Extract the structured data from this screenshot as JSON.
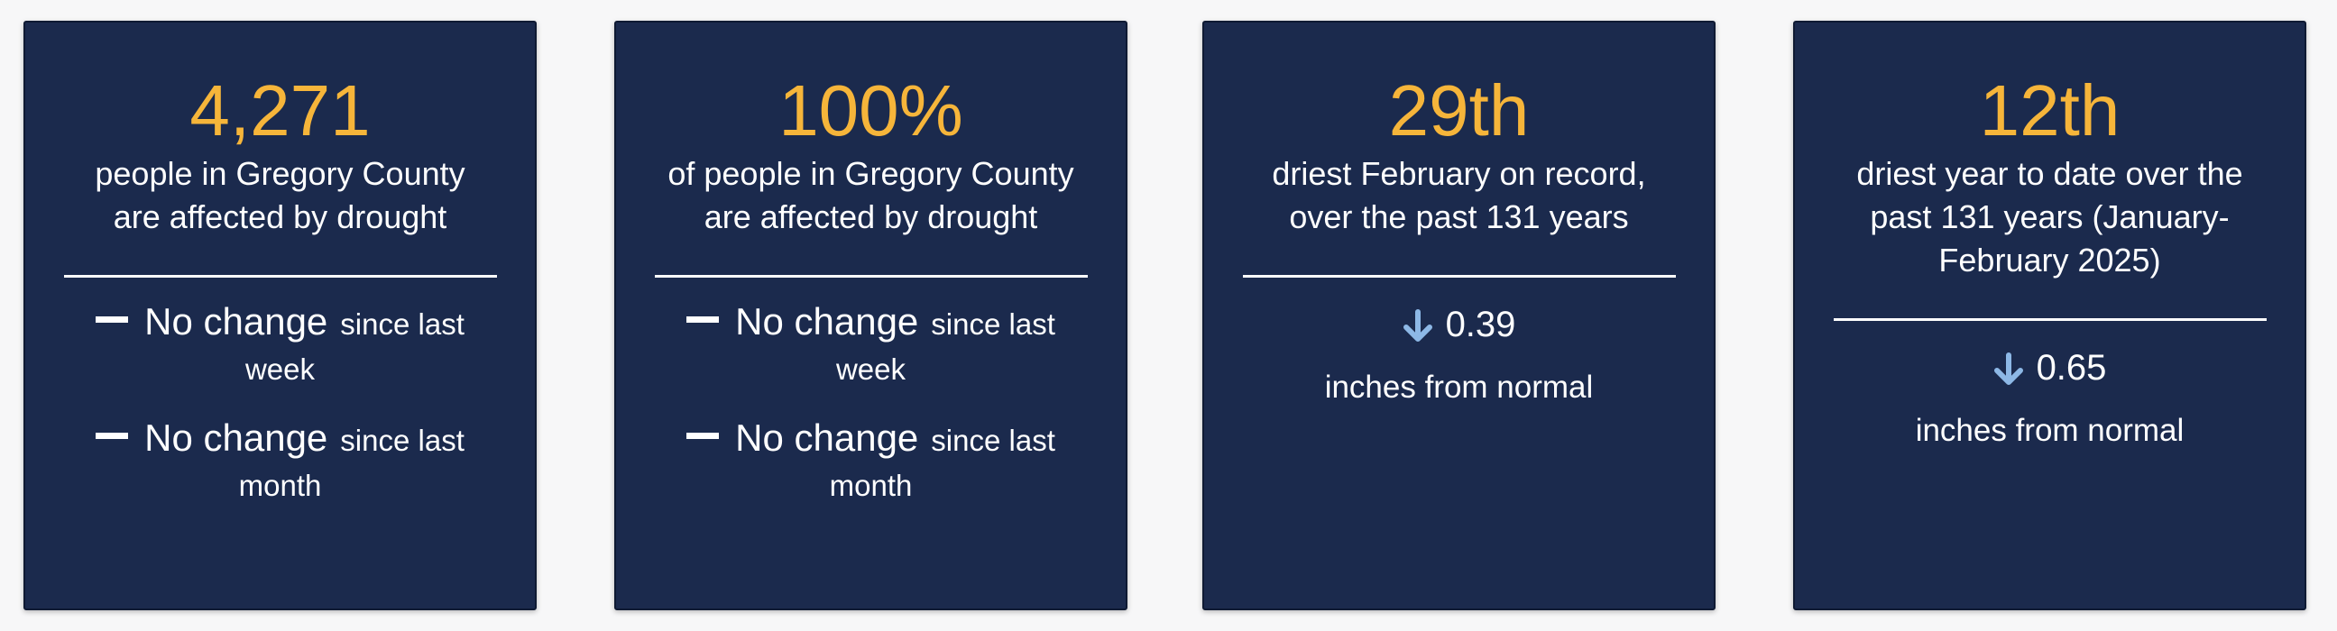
{
  "cards": [
    {
      "value": "4,271",
      "description": "people in Gregory County are affected by drought",
      "changes": [
        {
          "label": "No change",
          "period": "since last week"
        },
        {
          "label": "No change",
          "period": "since last month"
        }
      ]
    },
    {
      "value": "100%",
      "description": "of people in Gregory County are affected by drought",
      "changes": [
        {
          "label": "No change",
          "period": "since last week"
        },
        {
          "label": "No change",
          "period": "since last month"
        }
      ]
    },
    {
      "value": "29th",
      "description": "driest February on record, over the past 131 years",
      "departure": {
        "value": "0.39",
        "unit": "inches from normal"
      }
    },
    {
      "value": "12th",
      "description": "driest year to date over the past 131 years (January-February 2025)",
      "departure": {
        "value": "0.65",
        "unit": "inches from normal"
      }
    }
  ]
}
